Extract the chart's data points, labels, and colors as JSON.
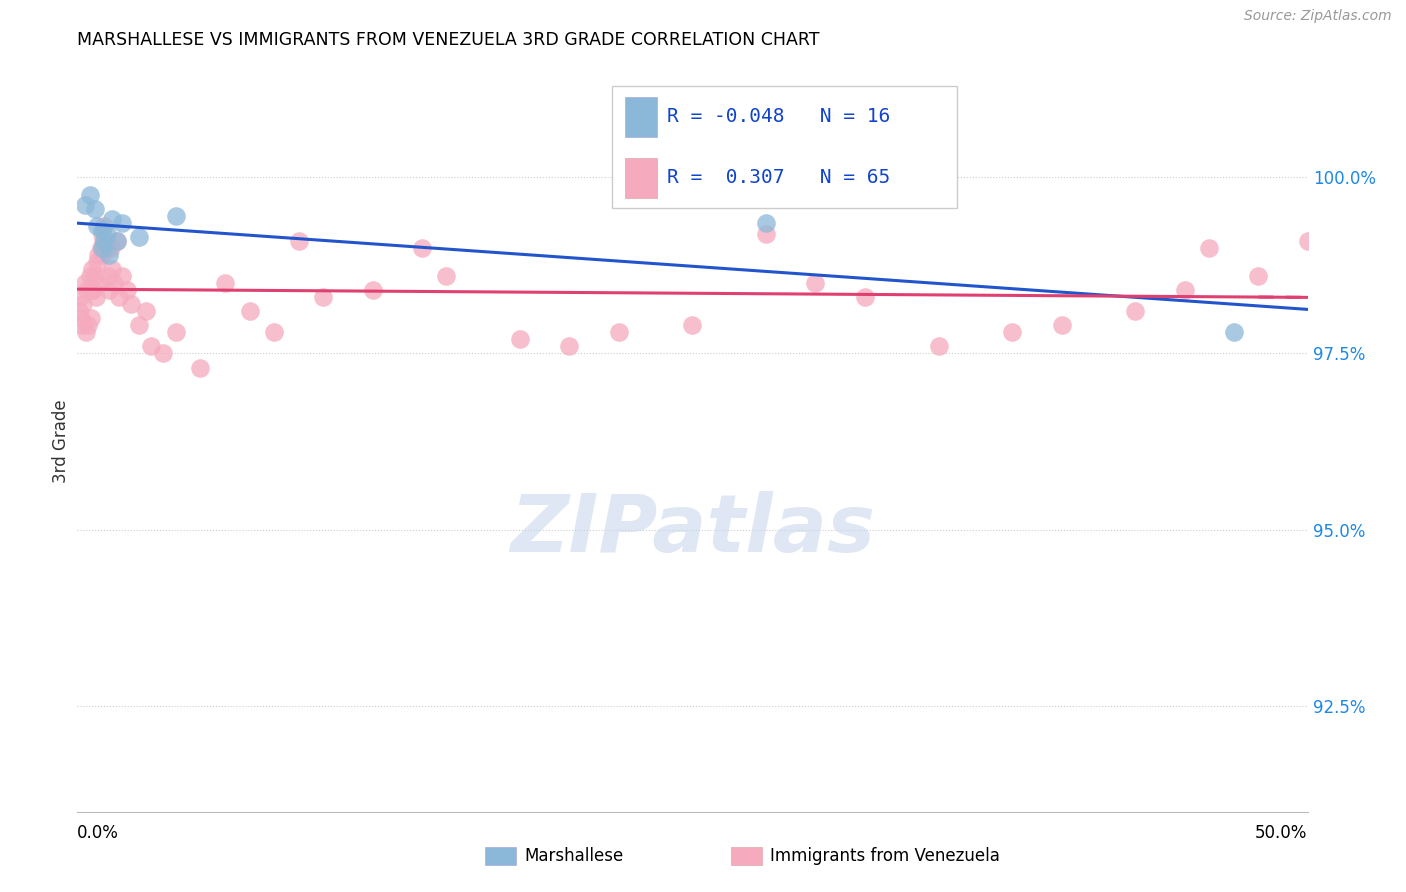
{
  "title": "MARSHALLESE VS IMMIGRANTS FROM VENEZUELA 3RD GRADE CORRELATION CHART",
  "source": "Source: ZipAtlas.com",
  "ylabel": "3rd Grade",
  "right_ytick_values": [
    92.5,
    95.0,
    97.5,
    100.0
  ],
  "right_ytick_labels": [
    "92.5%",
    "95.0%",
    "97.5%",
    "100.0%"
  ],
  "xlim": [
    0.0,
    50.0
  ],
  "ylim": [
    91.0,
    101.5
  ],
  "legend_blue_R": "-0.048",
  "legend_blue_N": "16",
  "legend_pink_R": " 0.307",
  "legend_pink_N": "65",
  "blue_label": "Marshallese",
  "pink_label": "Immigrants from Venezuela",
  "blue_color": "#8BB8D8",
  "pink_color": "#F5AABE",
  "blue_line_color": "#2255CC",
  "pink_line_color": "#E04070",
  "watermark_text": "ZIPatlas",
  "blue_x": [
    0.3,
    0.5,
    0.7,
    0.8,
    1.0,
    1.1,
    1.2,
    1.4,
    1.6,
    1.8,
    2.5,
    4.0,
    28.0,
    47.0,
    1.0,
    1.3
  ],
  "blue_y": [
    99.6,
    99.75,
    99.55,
    99.3,
    99.25,
    99.1,
    99.2,
    99.4,
    99.1,
    99.35,
    99.15,
    99.45,
    99.35,
    97.8,
    99.0,
    98.9
  ],
  "pink_x": [
    0.05,
    0.1,
    0.15,
    0.2,
    0.25,
    0.3,
    0.35,
    0.4,
    0.45,
    0.5,
    0.55,
    0.6,
    0.65,
    0.7,
    0.75,
    0.8,
    0.85,
    0.9,
    0.95,
    1.0,
    1.05,
    1.1,
    1.15,
    1.2,
    1.25,
    1.3,
    1.35,
    1.4,
    1.5,
    1.6,
    1.7,
    1.8,
    2.0,
    2.2,
    2.5,
    3.0,
    3.5,
    4.0,
    5.0,
    6.0,
    7.0,
    8.0,
    10.0,
    12.0,
    15.0,
    20.0,
    25.0,
    28.0,
    30.0,
    35.0,
    40.0,
    45.0,
    48.0,
    50.0,
    1.0,
    2.8,
    9.0,
    14.0,
    18.0,
    22.0,
    32.0,
    38.0,
    43.0,
    46.0,
    0.6
  ],
  "pink_y": [
    98.1,
    98.3,
    98.0,
    97.9,
    98.2,
    98.5,
    97.8,
    98.4,
    97.9,
    98.6,
    98.0,
    98.7,
    98.4,
    98.6,
    98.3,
    98.8,
    98.9,
    98.5,
    99.0,
    99.2,
    99.1,
    99.3,
    99.0,
    99.1,
    98.6,
    98.4,
    99.0,
    98.7,
    98.5,
    99.1,
    98.3,
    98.6,
    98.4,
    98.2,
    97.9,
    97.6,
    97.5,
    97.8,
    97.3,
    98.5,
    98.1,
    97.8,
    98.3,
    98.4,
    98.6,
    97.6,
    97.9,
    99.2,
    98.5,
    97.6,
    97.9,
    98.4,
    98.6,
    99.1,
    98.9,
    98.1,
    99.1,
    99.0,
    97.7,
    97.8,
    98.3,
    97.8,
    98.1,
    99.0,
    98.4
  ]
}
